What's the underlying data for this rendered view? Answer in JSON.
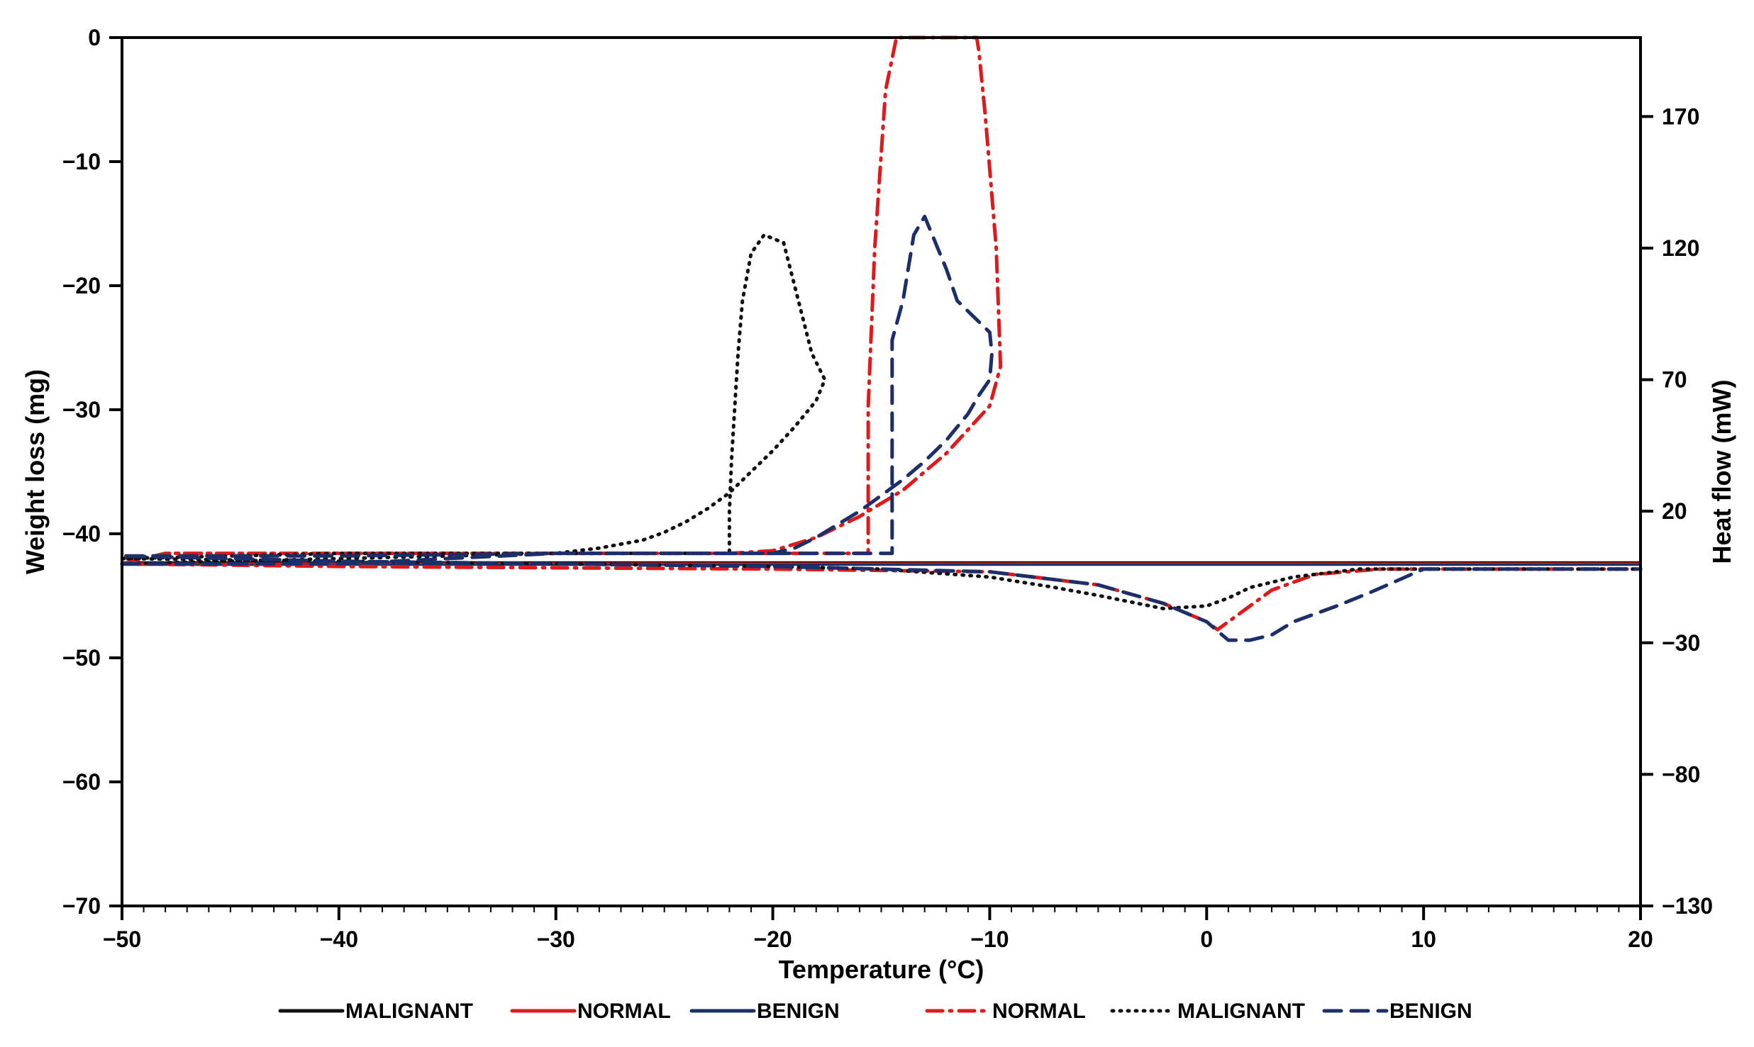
{
  "chart_data": {
    "type": "line",
    "x_axis": {
      "label": "Temperature (°C)",
      "range": [
        -50,
        20
      ],
      "ticks": [
        -50,
        -40,
        -30,
        -20,
        -10,
        0,
        10,
        20
      ],
      "tick_labels": [
        "−50",
        "−40",
        "−30",
        "−20",
        "−10",
        "0",
        "10",
        "20"
      ]
    },
    "y_axis_left": {
      "label": "Weight loss (mg)",
      "range": [
        -70,
        0
      ],
      "ticks": [
        0,
        -10,
        -20,
        -30,
        -40,
        -50,
        -60,
        -70
      ],
      "tick_labels": [
        "0",
        "−10",
        "−20",
        "−30",
        "−40",
        "−50",
        "−60",
        "−70"
      ]
    },
    "y_axis_right": {
      "label": "Heat flow (mW)",
      "range": [
        -130,
        200
      ],
      "ticks": [
        170,
        120,
        70,
        20,
        -30,
        -80,
        -130
      ],
      "tick_labels": [
        "170",
        "120",
        "70",
        "20",
        "−30",
        "−80",
        "−130"
      ]
    },
    "grid": false,
    "legend_position": "bottom",
    "series": [
      {
        "name": "MALIGNANT",
        "axis": "left",
        "style": "solid",
        "color": "#111111",
        "x": [
          -50,
          20
        ],
        "y": [
          -42.3,
          -42.3
        ]
      },
      {
        "name": "NORMAL",
        "axis": "left",
        "style": "solid",
        "color": "#e0191b",
        "x": [
          -50,
          20
        ],
        "y": [
          -42.4,
          -42.4
        ]
      },
      {
        "name": "BENIGN",
        "axis": "left",
        "style": "solid",
        "color": "#1c2f6b",
        "x": [
          -50,
          20
        ],
        "y": [
          -42.5,
          -42.5
        ]
      },
      {
        "name": "NORMAL",
        "axis": "right",
        "style": "dashdot",
        "color": "#e0191b",
        "x": [
          -50,
          -48,
          -40,
          -30,
          -22,
          -20,
          -18,
          -16,
          -14,
          -12,
          -10,
          -9.5,
          -9.7,
          -10.2,
          -10.5,
          -10.6,
          -14.3,
          -14.8,
          -15.3,
          -15.6,
          -15.6,
          -20,
          -30,
          -40,
          -48,
          -50,
          -40,
          -30,
          -20,
          -10,
          -5,
          -2,
          0,
          0.5,
          1,
          2,
          3,
          5,
          8,
          12,
          20
        ],
        "y": [
          0,
          4,
          4,
          4,
          4,
          5,
          10,
          18,
          28,
          42,
          60,
          75,
          120,
          170,
          195,
          200,
          200,
          180,
          120,
          60,
          4,
          4,
          4,
          4,
          4,
          0,
          -1,
          -1.5,
          -2,
          -3,
          -8,
          -15,
          -22,
          -25,
          -22,
          -16,
          -10,
          -4,
          -2,
          -2,
          -2
        ]
      },
      {
        "name": "MALIGNANT",
        "axis": "right",
        "style": "dotted",
        "color": "#111111",
        "x": [
          -50,
          -30,
          -28,
          -26,
          -25,
          -24,
          -23,
          -22,
          -21,
          -20,
          -19,
          -18,
          -17.6,
          -18.2,
          -19.5,
          -20.4,
          -21,
          -21.4,
          -21.6,
          -21.9,
          -22,
          -22,
          -30,
          -40,
          -50,
          -40,
          -30,
          -20,
          -15,
          -10,
          -7,
          -5,
          -2,
          0,
          1,
          2,
          4,
          7,
          10,
          20
        ],
        "y": [
          0,
          4,
          6,
          9,
          12,
          16,
          21,
          27,
          35,
          43,
          52,
          62,
          70,
          80,
          122,
          125,
          118,
          100,
          80,
          40,
          20,
          4,
          4,
          4,
          2,
          1,
          0,
          -1,
          -2,
          -5,
          -9,
          -12,
          -17,
          -16,
          -13,
          -9,
          -5,
          -2,
          -2,
          -2
        ]
      },
      {
        "name": "BENIGN",
        "axis": "right",
        "style": "dashed",
        "color": "#1c2f6b",
        "x": [
          -50,
          -40,
          -30,
          -20,
          -19,
          -18,
          -17,
          -16,
          -15,
          -14,
          -13,
          -12,
          -11,
          -10.5,
          -10,
          -9.9,
          -10,
          -10.5,
          -11,
          -11.5,
          -12,
          -12.5,
          -13,
          -13.5,
          -14,
          -14.5,
          -14.5,
          -14.5,
          -14.5,
          -20,
          -30,
          -40,
          -50,
          -40,
          -30,
          -20,
          -10,
          -5,
          -2,
          0,
          1,
          2,
          3,
          4,
          6,
          7.5,
          10,
          20
        ],
        "y": [
          0,
          0,
          4,
          4,
          6,
          10,
          15,
          20,
          26,
          32,
          39,
          47,
          57,
          64,
          70,
          80,
          88,
          92,
          96,
          100,
          112,
          122,
          132,
          125,
          100,
          85,
          30,
          4,
          4,
          4,
          4,
          3,
          3,
          1,
          0,
          -1,
          -3,
          -8,
          -15,
          -22,
          -29,
          -29,
          -27,
          -22,
          -16,
          -11,
          -2,
          -2
        ]
      }
    ]
  }
}
